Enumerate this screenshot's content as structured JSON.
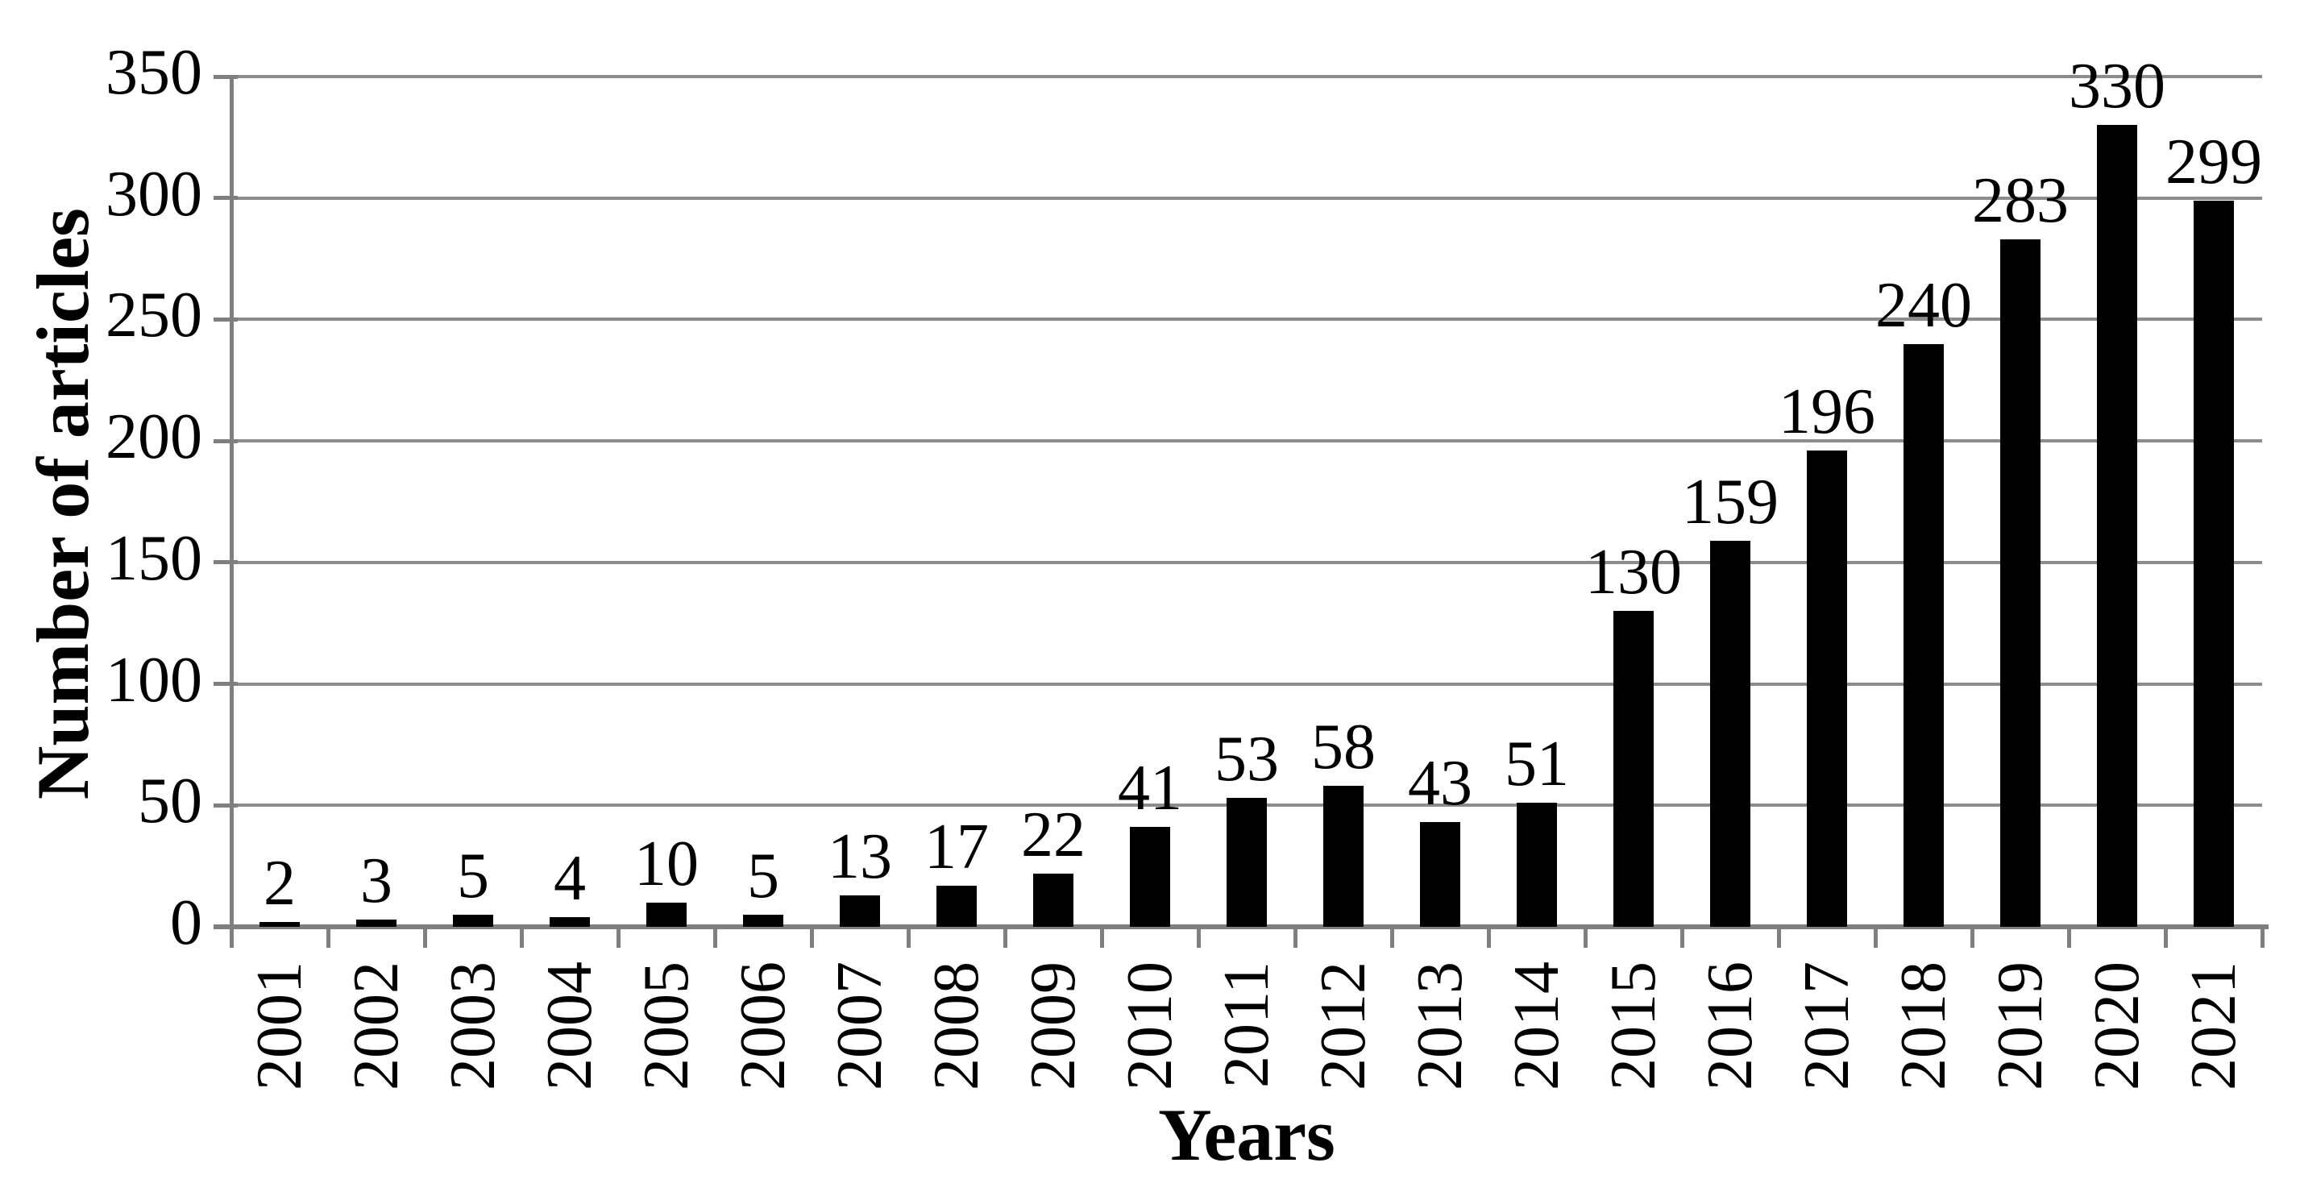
{
  "chart_data": {
    "type": "bar",
    "title": "",
    "xlabel": "Years",
    "ylabel": "Number of articles",
    "categories": [
      "2001",
      "2002",
      "2003",
      "2004",
      "2005",
      "2006",
      "2007",
      "2008",
      "2009",
      "2010",
      "2011",
      "2012",
      "2013",
      "2014",
      "2015",
      "2016",
      "2017",
      "2018",
      "2019",
      "2020",
      "2021"
    ],
    "values": [
      2,
      3,
      5,
      4,
      10,
      5,
      13,
      17,
      22,
      41,
      53,
      58,
      43,
      51,
      130,
      159,
      196,
      240,
      283,
      330,
      299
    ],
    "data_labels_shown": true,
    "ylim": [
      0,
      350
    ],
    "y_ticks": [
      0,
      50,
      100,
      150,
      200,
      250,
      300,
      350
    ],
    "grid": "horizontal",
    "legend": "none",
    "colors": {
      "bar": "#000000",
      "gridline": "#8c8c8c",
      "axis": "#7f7f7f",
      "text": "#000000",
      "background": "#ffffff"
    }
  }
}
